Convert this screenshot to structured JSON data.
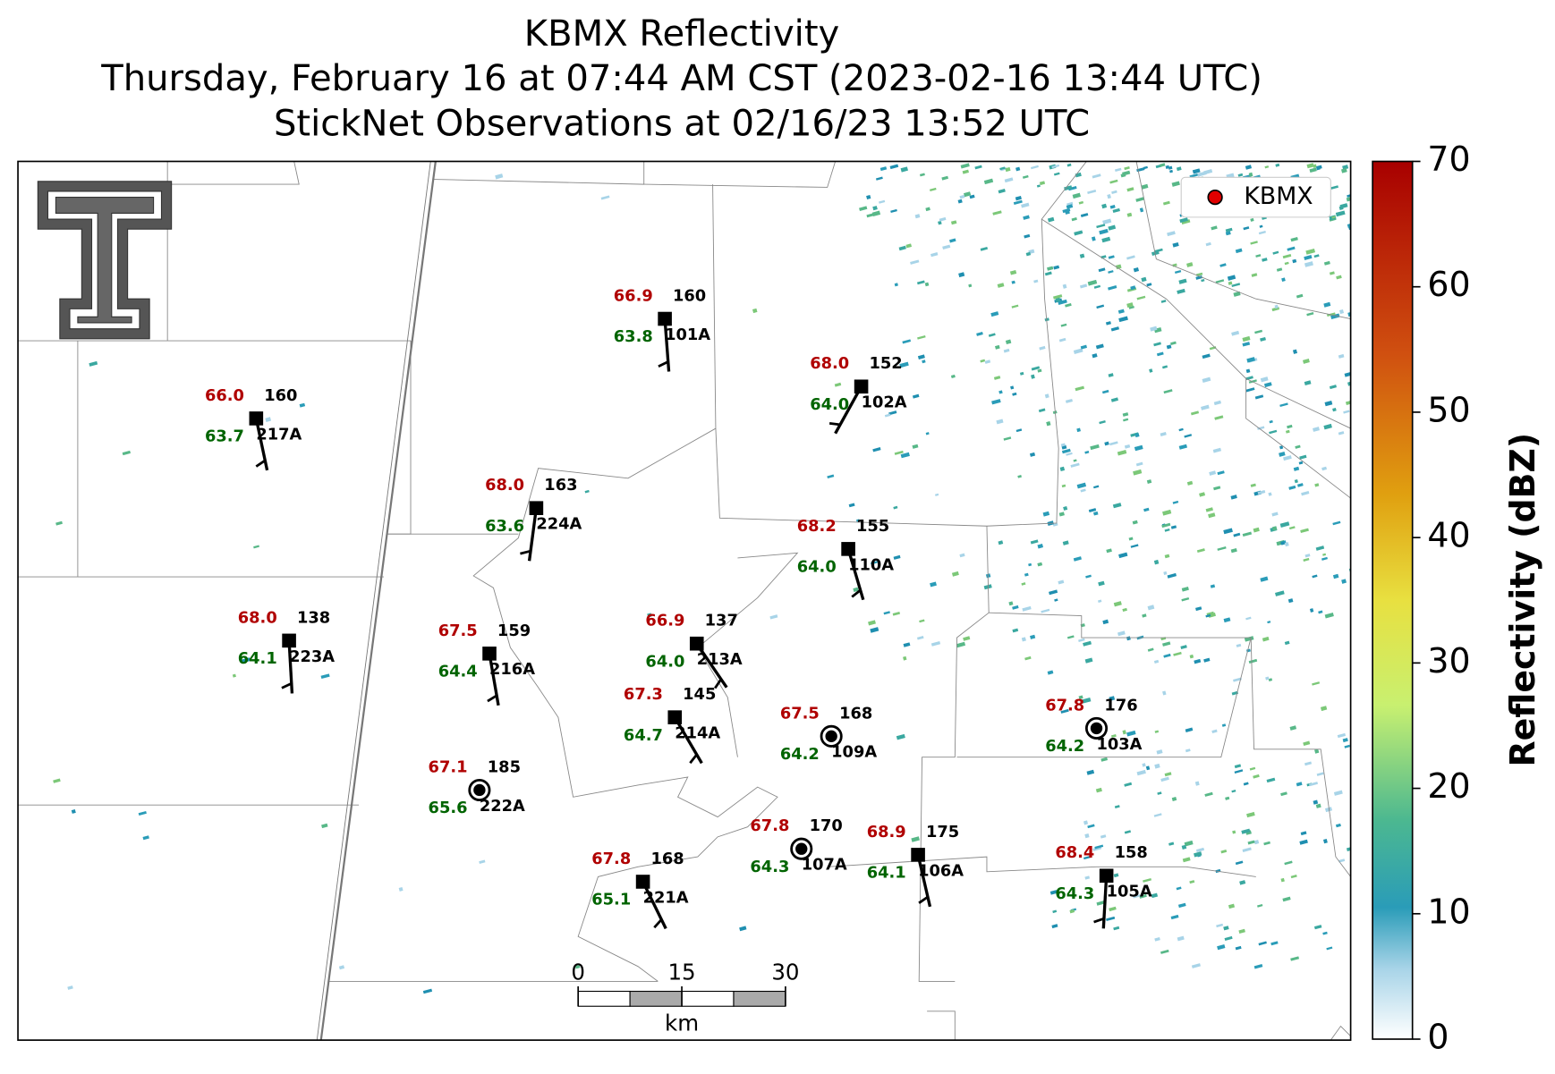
{
  "header": {
    "title": [
      "KBMX Reflectivity",
      "Thursday, February 16 at 07:44 AM CST (2023-02-16 13:44 UTC)",
      "StickNet Observations at 02/16/23 13:52 UTC"
    ]
  },
  "legend": {
    "label": "KBMX",
    "color": "#e00000"
  },
  "stations": [
    {
      "id": "101A",
      "temperature": "66.9",
      "dewpoint": "63.8",
      "value": "160"
    },
    {
      "id": "102A",
      "temperature": "68.0",
      "dewpoint": "64.0",
      "value": "152"
    },
    {
      "id": "217A",
      "temperature": "66.0",
      "dewpoint": "63.7",
      "value": "160"
    },
    {
      "id": "224A",
      "temperature": "68.0",
      "dewpoint": "63.6",
      "value": "163"
    },
    {
      "id": "110A",
      "temperature": "68.2",
      "dewpoint": "64.0",
      "value": "155"
    },
    {
      "id": "223A",
      "temperature": "68.0",
      "dewpoint": "64.1",
      "value": "138"
    },
    {
      "id": "216A",
      "temperature": "67.5",
      "dewpoint": "64.4",
      "value": "159"
    },
    {
      "id": "213A",
      "temperature": "66.9",
      "dewpoint": "64.0",
      "value": "137"
    },
    {
      "id": "214A",
      "temperature": "67.3",
      "dewpoint": "64.7",
      "value": "145"
    },
    {
      "id": "109A",
      "temperature": "67.5",
      "dewpoint": "64.2",
      "value": "168"
    },
    {
      "id": "103A",
      "temperature": "67.8",
      "dewpoint": "64.2",
      "value": "176"
    },
    {
      "id": "222A",
      "temperature": "67.1",
      "dewpoint": "65.6",
      "value": "185"
    },
    {
      "id": "107A",
      "temperature": "67.8",
      "dewpoint": "64.3",
      "value": "170"
    },
    {
      "id": "106A",
      "temperature": "68.9",
      "dewpoint": "64.1",
      "value": "175"
    },
    {
      "id": "221A",
      "temperature": "67.8",
      "dewpoint": "65.1",
      "value": "168"
    },
    {
      "id": "105A",
      "temperature": "68.4",
      "dewpoint": "64.3",
      "value": "158"
    }
  ],
  "colorbar": {
    "label": "Reflectivity (dBZ)",
    "lim": [
      0,
      70
    ],
    "ticks": [
      0,
      10,
      20,
      30,
      40,
      50,
      60,
      70
    ]
  },
  "scale_bar": {
    "unit": "km",
    "lim": [
      0,
      30
    ],
    "ticks": [
      0,
      15,
      30
    ]
  }
}
